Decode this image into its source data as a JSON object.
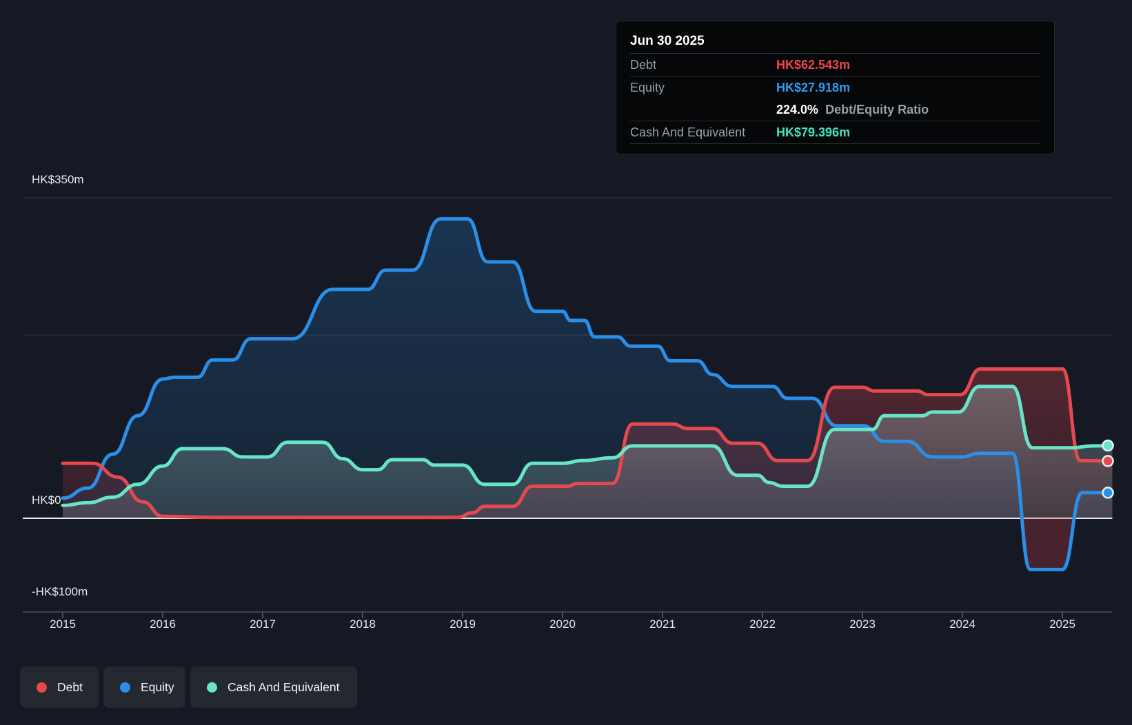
{
  "tooltip": {
    "date": "Jun 30 2025",
    "debt_label": "Debt",
    "debt_value": "HK$62.543m",
    "equity_label": "Equity",
    "equity_value": "HK$27.918m",
    "ratio_value": "224.0%",
    "ratio_text": "Debt/Equity Ratio",
    "cash_label": "Cash And Equivalent",
    "cash_value": "HK$79.396m"
  },
  "legend": [
    {
      "label": "Debt",
      "color": "#e5494e"
    },
    {
      "label": "Equity",
      "color": "#2a8fe8"
    },
    {
      "label": "Cash And Equivalent",
      "color": "#68e5c8"
    }
  ],
  "colors": {
    "background": "#141923",
    "debt": "#e5494e",
    "equity": "#2a8fe8",
    "cash": "#68e5c8",
    "zero_line": "#e9ecee",
    "debt_value_text": "#ef4449",
    "equity_value_text": "#2a9df4",
    "cash_value_text": "#45e3c0"
  },
  "chart_data": {
    "type": "area",
    "unit": "HK$m",
    "title": "",
    "xlabel": "",
    "ylabel": "",
    "xlim": [
      2015,
      2025.5
    ],
    "ylim": [
      -102,
      350
    ],
    "x_ticks": [
      "2015",
      "2016",
      "2017",
      "2018",
      "2019",
      "2020",
      "2021",
      "2022",
      "2023",
      "2024",
      "2025"
    ],
    "x_tick_values": [
      2015,
      2016,
      2017,
      2018,
      2019,
      2020,
      2021,
      2022,
      2023,
      2024,
      2025
    ],
    "y_axis_labels": [
      {
        "text": "HK$350m",
        "value": 350
      },
      {
        "text": "HK$0",
        "value": 0
      },
      {
        "text": "-HK$100m",
        "value": -100
      }
    ],
    "gridline_values": [
      350,
      200
    ],
    "legend_position": "bottom-left",
    "series": [
      {
        "name": "Equity",
        "color": "#2a8fe8",
        "end_value": 27.918,
        "points": [
          [
            2015.0,
            22
          ],
          [
            2015.25,
            33
          ],
          [
            2015.5,
            70
          ],
          [
            2015.75,
            112
          ],
          [
            2016.0,
            152
          ],
          [
            2016.12,
            154
          ],
          [
            2016.35,
            154
          ],
          [
            2016.5,
            173
          ],
          [
            2016.7,
            173
          ],
          [
            2016.88,
            196
          ],
          [
            2017.3,
            196
          ],
          [
            2017.7,
            250
          ],
          [
            2018.05,
            250
          ],
          [
            2018.23,
            271
          ],
          [
            2018.5,
            271
          ],
          [
            2018.78,
            327
          ],
          [
            2019.05,
            327
          ],
          [
            2019.25,
            280
          ],
          [
            2019.5,
            280
          ],
          [
            2019.73,
            226
          ],
          [
            2020.0,
            226
          ],
          [
            2020.08,
            216
          ],
          [
            2020.22,
            216
          ],
          [
            2020.32,
            198
          ],
          [
            2020.55,
            198
          ],
          [
            2020.68,
            188
          ],
          [
            2020.95,
            188
          ],
          [
            2021.08,
            172
          ],
          [
            2021.35,
            172
          ],
          [
            2021.5,
            157
          ],
          [
            2021.7,
            144
          ],
          [
            2022.1,
            144
          ],
          [
            2022.25,
            131
          ],
          [
            2022.5,
            131
          ],
          [
            2022.74,
            101
          ],
          [
            2023.01,
            101
          ],
          [
            2023.22,
            84
          ],
          [
            2023.45,
            84
          ],
          [
            2023.7,
            67
          ],
          [
            2023.98,
            67
          ],
          [
            2024.18,
            71
          ],
          [
            2024.5,
            71
          ],
          [
            2024.68,
            -56
          ],
          [
            2025.0,
            -56
          ],
          [
            2025.2,
            28
          ],
          [
            2025.5,
            27.9
          ]
        ]
      },
      {
        "name": "Debt",
        "color": "#e5494e",
        "end_value": 62.543,
        "points": [
          [
            2015.0,
            60
          ],
          [
            2015.3,
            60
          ],
          [
            2015.55,
            45
          ],
          [
            2015.8,
            18
          ],
          [
            2016.0,
            2
          ],
          [
            2016.5,
            1
          ],
          [
            2017.0,
            1
          ],
          [
            2017.5,
            1
          ],
          [
            2018.0,
            1
          ],
          [
            2018.5,
            1
          ],
          [
            2018.95,
            1
          ],
          [
            2019.1,
            6
          ],
          [
            2019.22,
            13
          ],
          [
            2019.5,
            13
          ],
          [
            2019.7,
            35
          ],
          [
            2020.05,
            35
          ],
          [
            2020.15,
            38
          ],
          [
            2020.5,
            38
          ],
          [
            2020.7,
            103
          ],
          [
            2021.1,
            103
          ],
          [
            2021.25,
            98
          ],
          [
            2021.5,
            98
          ],
          [
            2021.7,
            82
          ],
          [
            2021.95,
            82
          ],
          [
            2022.15,
            63
          ],
          [
            2022.45,
            63
          ],
          [
            2022.72,
            143
          ],
          [
            2023.0,
            143
          ],
          [
            2023.12,
            139
          ],
          [
            2023.55,
            139
          ],
          [
            2023.65,
            135
          ],
          [
            2023.98,
            135
          ],
          [
            2024.18,
            163
          ],
          [
            2025.0,
            163
          ],
          [
            2025.18,
            63
          ],
          [
            2025.5,
            62.5
          ]
        ]
      },
      {
        "name": "Cash And Equivalent",
        "color": "#68e5c8",
        "end_value": 79.396,
        "points": [
          [
            2015.0,
            14
          ],
          [
            2015.25,
            17
          ],
          [
            2015.5,
            23
          ],
          [
            2015.75,
            37
          ],
          [
            2016.0,
            57
          ],
          [
            2016.2,
            76
          ],
          [
            2016.6,
            76
          ],
          [
            2016.8,
            67
          ],
          [
            2017.05,
            67
          ],
          [
            2017.25,
            83
          ],
          [
            2017.6,
            83
          ],
          [
            2017.8,
            65
          ],
          [
            2018.0,
            53
          ],
          [
            2018.15,
            53
          ],
          [
            2018.3,
            64
          ],
          [
            2018.6,
            64
          ],
          [
            2018.72,
            58
          ],
          [
            2019.0,
            58
          ],
          [
            2019.22,
            37
          ],
          [
            2019.5,
            37
          ],
          [
            2019.7,
            60
          ],
          [
            2020.0,
            60
          ],
          [
            2020.2,
            63
          ],
          [
            2020.5,
            66
          ],
          [
            2020.7,
            79
          ],
          [
            2021.5,
            79
          ],
          [
            2021.75,
            47
          ],
          [
            2021.95,
            47
          ],
          [
            2022.07,
            39
          ],
          [
            2022.2,
            35
          ],
          [
            2022.45,
            35
          ],
          [
            2022.72,
            97
          ],
          [
            2023.1,
            97
          ],
          [
            2023.22,
            112
          ],
          [
            2023.6,
            112
          ],
          [
            2023.7,
            116
          ],
          [
            2023.96,
            116
          ],
          [
            2024.17,
            144
          ],
          [
            2024.5,
            144
          ],
          [
            2024.7,
            77
          ],
          [
            2025.1,
            77
          ],
          [
            2025.3,
            79
          ],
          [
            2025.5,
            79.4
          ]
        ]
      }
    ]
  }
}
